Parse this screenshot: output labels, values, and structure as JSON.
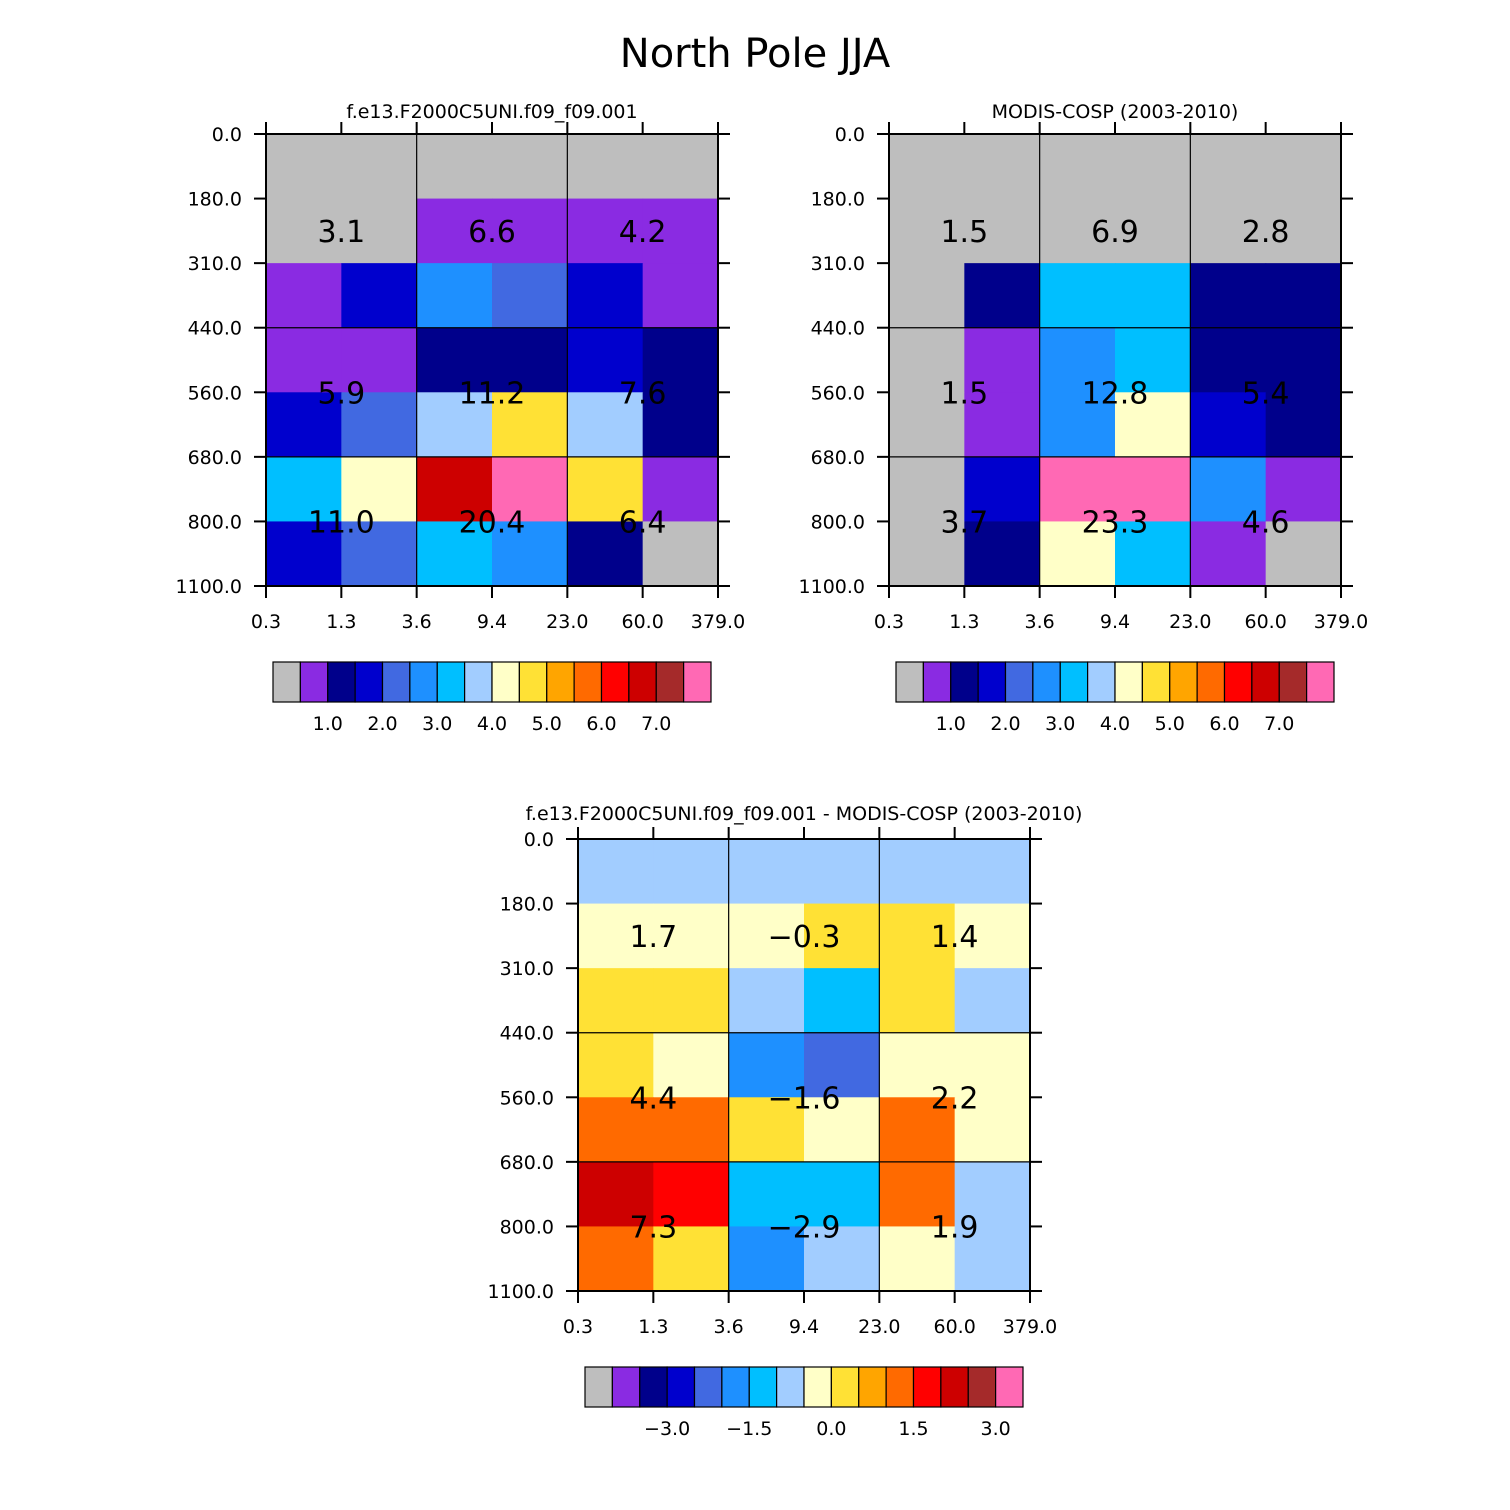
{
  "figure": {
    "title": "North Pole JJA"
  },
  "chart_data": [
    {
      "type": "heatmap",
      "title": "f.e13.F2000C5UNI.f09_f09.001",
      "x_ticks": [
        "0.3",
        "1.3",
        "3.6",
        "9.4",
        "23.0",
        "60.0",
        "379.0"
      ],
      "y_ticks": [
        "0.0",
        "180.0",
        "310.0",
        "440.0",
        "560.0",
        "680.0",
        "800.0",
        "1100.0"
      ],
      "cell_colors": [
        [
          "#bebebe",
          "#bebebe",
          "#bebebe",
          "#bebebe",
          "#bebebe",
          "#bebebe"
        ],
        [
          "#bebebe",
          "#bebebe",
          "#8a2be2",
          "#8a2be2",
          "#8a2be2",
          "#8a2be2"
        ],
        [
          "#8a2be2",
          "#0000cd",
          "#1e90ff",
          "#4169e1",
          "#0000cd",
          "#8a2be2"
        ],
        [
          "#8a2be2",
          "#8a2be2",
          "#00008b",
          "#00008b",
          "#0000cd",
          "#00008b"
        ],
        [
          "#0000cd",
          "#4169e1",
          "#a2cdff",
          "#ffe135",
          "#a2cdff",
          "#00008b"
        ],
        [
          "#00bfff",
          "#ffffc8",
          "#cd0000",
          "#ff69b4",
          "#ffe135",
          "#8a2be2"
        ],
        [
          "#0000cd",
          "#4169e1",
          "#00bfff",
          "#1e90ff",
          "#00008b",
          "#bebebe"
        ]
      ],
      "block_totals": [
        [
          "3.1",
          "6.6",
          "4.2"
        ],
        [
          "5.9",
          "11.2",
          "7.6"
        ],
        [
          "11.0",
          "20.4",
          "6.4"
        ]
      ],
      "colorbar": {
        "colors": [
          "#bebebe",
          "#8a2be2",
          "#00008b",
          "#0000cd",
          "#4169e1",
          "#1e90ff",
          "#00bfff",
          "#a2cdff",
          "#ffffc8",
          "#ffe135",
          "#ffa500",
          "#ff6a00",
          "#ff0000",
          "#cd0000",
          "#a52a2a",
          "#ff69b4"
        ],
        "labels": [
          "1.0",
          "2.0",
          "3.0",
          "4.0",
          "5.0",
          "6.0",
          "7.0"
        ]
      }
    },
    {
      "type": "heatmap",
      "title": "MODIS-COSP (2003-2010)",
      "x_ticks": [
        "0.3",
        "1.3",
        "3.6",
        "9.4",
        "23.0",
        "60.0",
        "379.0"
      ],
      "y_ticks": [
        "0.0",
        "180.0",
        "310.0",
        "440.0",
        "560.0",
        "680.0",
        "800.0",
        "1100.0"
      ],
      "cell_colors": [
        [
          "#bebebe",
          "#bebebe",
          "#bebebe",
          "#bebebe",
          "#bebebe",
          "#bebebe"
        ],
        [
          "#bebebe",
          "#bebebe",
          "#bebebe",
          "#bebebe",
          "#bebebe",
          "#bebebe"
        ],
        [
          "#bebebe",
          "#00008b",
          "#00bfff",
          "#00bfff",
          "#00008b",
          "#00008b"
        ],
        [
          "#bebebe",
          "#8a2be2",
          "#1e90ff",
          "#00bfff",
          "#00008b",
          "#00008b"
        ],
        [
          "#bebebe",
          "#8a2be2",
          "#1e90ff",
          "#ffffc8",
          "#0000cd",
          "#00008b"
        ],
        [
          "#bebebe",
          "#0000cd",
          "#ff69b4",
          "#ff69b4",
          "#1e90ff",
          "#8a2be2"
        ],
        [
          "#bebebe",
          "#00008b",
          "#ffffc8",
          "#00bfff",
          "#8a2be2",
          "#bebebe"
        ]
      ],
      "block_totals": [
        [
          "1.5",
          "6.9",
          "2.8"
        ],
        [
          "1.5",
          "12.8",
          "5.4"
        ],
        [
          "3.7",
          "23.3",
          "4.6"
        ]
      ],
      "colorbar": {
        "colors": [
          "#bebebe",
          "#8a2be2",
          "#00008b",
          "#0000cd",
          "#4169e1",
          "#1e90ff",
          "#00bfff",
          "#a2cdff",
          "#ffffc8",
          "#ffe135",
          "#ffa500",
          "#ff6a00",
          "#ff0000",
          "#cd0000",
          "#a52a2a",
          "#ff69b4"
        ],
        "labels": [
          "1.0",
          "2.0",
          "3.0",
          "4.0",
          "5.0",
          "6.0",
          "7.0"
        ]
      }
    },
    {
      "type": "heatmap",
      "title": "f.e13.F2000C5UNI.f09_f09.001 - MODIS-COSP (2003-2010)",
      "x_ticks": [
        "0.3",
        "1.3",
        "3.6",
        "9.4",
        "23.0",
        "60.0",
        "379.0"
      ],
      "y_ticks": [
        "0.0",
        "180.0",
        "310.0",
        "440.0",
        "560.0",
        "680.0",
        "800.0",
        "1100.0"
      ],
      "cell_colors": [
        [
          "#a2cdff",
          "#a2cdff",
          "#a2cdff",
          "#a2cdff",
          "#a2cdff",
          "#a2cdff"
        ],
        [
          "#ffffc8",
          "#ffffc8",
          "#ffffc8",
          "#ffe135",
          "#ffe135",
          "#ffffc8"
        ],
        [
          "#ffe135",
          "#ffe135",
          "#a2cdff",
          "#00bfff",
          "#ffe135",
          "#a2cdff"
        ],
        [
          "#ffe135",
          "#ffffc8",
          "#1e90ff",
          "#4169e1",
          "#ffffc8",
          "#ffffc8"
        ],
        [
          "#ff6a00",
          "#ff6a00",
          "#ffe135",
          "#ffffc8",
          "#ff6a00",
          "#ffffc8"
        ],
        [
          "#cd0000",
          "#ff0000",
          "#00bfff",
          "#00bfff",
          "#ff6a00",
          "#a2cdff"
        ],
        [
          "#ff6a00",
          "#ffe135",
          "#1e90ff",
          "#a2cdff",
          "#ffffc8",
          "#a2cdff"
        ]
      ],
      "block_totals": [
        [
          "1.7",
          "−0.3",
          "1.4"
        ],
        [
          "4.4",
          "−1.6",
          "2.2"
        ],
        [
          "7.3",
          "−2.9",
          "1.9"
        ]
      ],
      "colorbar": {
        "colors": [
          "#bebebe",
          "#8a2be2",
          "#00008b",
          "#0000cd",
          "#4169e1",
          "#1e90ff",
          "#00bfff",
          "#a2cdff",
          "#ffffc8",
          "#ffe135",
          "#ffa500",
          "#ff6a00",
          "#ff0000",
          "#cd0000",
          "#a52a2a",
          "#ff69b4"
        ],
        "labels": [
          "−3.0",
          "−1.5",
          "0.0",
          "1.5",
          "3.0"
        ]
      }
    }
  ]
}
